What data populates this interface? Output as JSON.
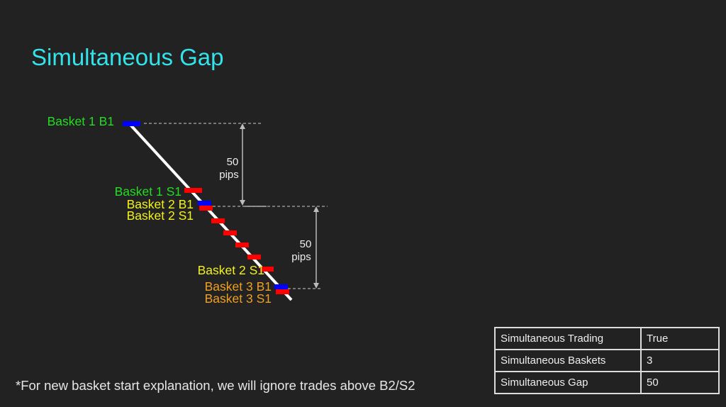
{
  "title": "Simultaneous Gap",
  "footnote": "*For new basket start explanation, we will ignore trades above B2/S2",
  "colors": {
    "title": "#33e3ea",
    "basket1": "#22dd22",
    "basket2": "#f2f21e",
    "basket3": "#f0a020",
    "buy": "#0000ff",
    "sell": "#ff0000"
  },
  "diagram": {
    "labels": {
      "b1b1": "Basket 1 B1",
      "b1s1": "Basket 1 S1",
      "b2b1": "Basket 2 B1",
      "b2s1": "Basket 2 S1",
      "b2s1_lower": "Basket 2 S1",
      "b3b1": "Basket 3 B1",
      "b3s1": "Basket 3 S1"
    },
    "gap1": {
      "value": "50",
      "unit": "pips"
    },
    "gap2": {
      "value": "50",
      "unit": "pips"
    }
  },
  "settings_table": [
    {
      "key": "Simultaneous Trading",
      "value": "True"
    },
    {
      "key": "Simultaneous Baskets",
      "value": "3"
    },
    {
      "key": "Simultaneous Gap",
      "value": "50"
    }
  ]
}
